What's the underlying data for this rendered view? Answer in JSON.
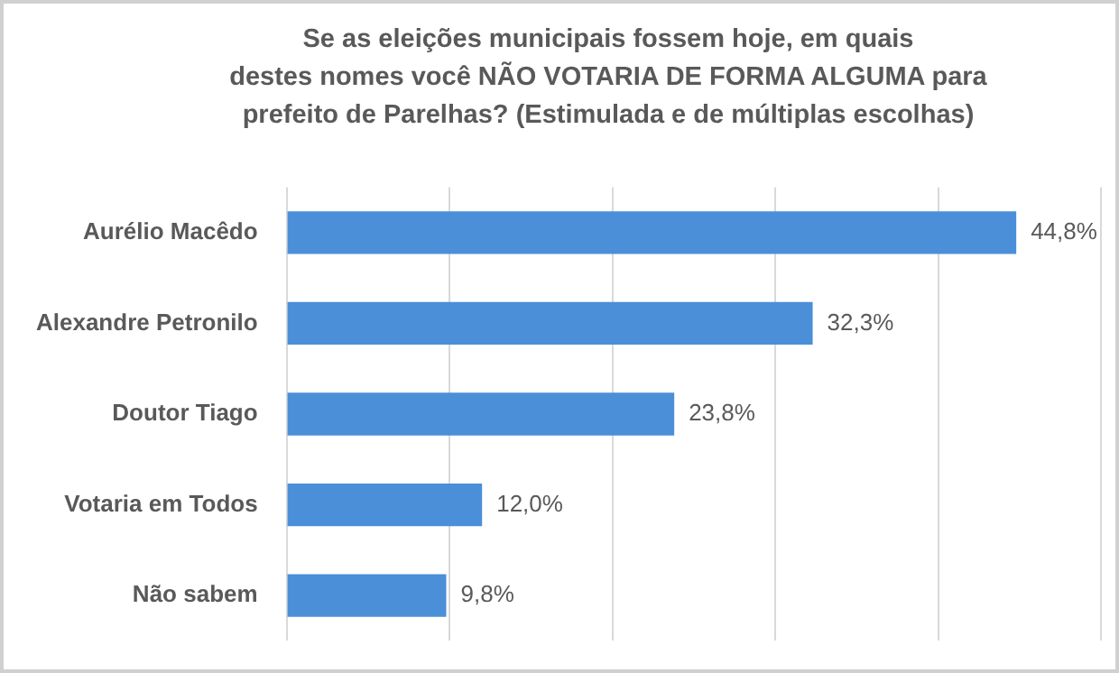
{
  "chart_data": {
    "type": "bar",
    "orientation": "horizontal",
    "title": "Se as eleições municipais fossem hoje, em quais\ndestes nomes você NÃO VOTARIA DE FORMA ALGUMA para\nprefeito de Parelhas? (Estimulada e de múltiplas escolhas)",
    "categories": [
      "Aurélio Macêdo",
      "Alexandre Petronilo",
      "Doutor Tiago",
      "Votaria em Todos",
      "Não sabem"
    ],
    "values": [
      44.8,
      32.3,
      23.8,
      12.0,
      9.8
    ],
    "value_labels": [
      "44,8%",
      "32,3%",
      "23,8%",
      "12,0%",
      "9,8%"
    ],
    "color": "#4a8fd8",
    "xlim": [
      0,
      50
    ],
    "xticks": [
      {
        "value": 0,
        "label": null
      },
      {
        "value": 10,
        "label": null
      },
      {
        "value": 20,
        "label": null
      },
      {
        "value": 30,
        "label": null
      },
      {
        "value": 40,
        "label": null
      },
      {
        "value": 50,
        "label": null
      }
    ],
    "grid": "x",
    "tick_labels": "y",
    "legend": false
  }
}
